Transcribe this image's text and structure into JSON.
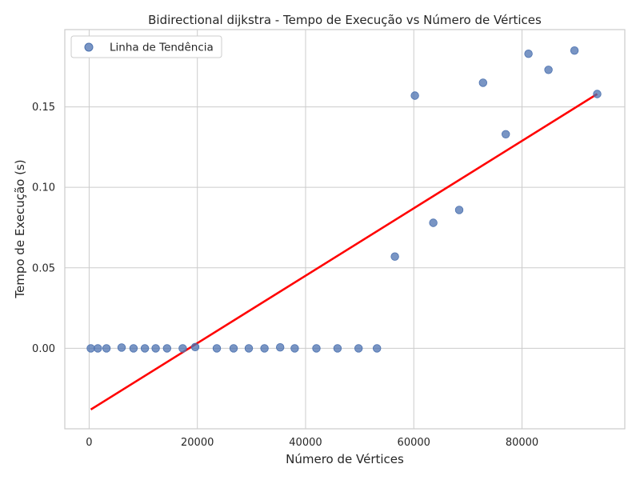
{
  "chart_data": {
    "type": "scatter",
    "title": "Bidirectional dijkstra - Tempo de Execução vs Número de Vértices",
    "xlabel": "Número de Vértices",
    "ylabel": "Tempo de Execução (s)",
    "xlim": [
      -4500,
      99000
    ],
    "ylim": [
      -0.05,
      0.198
    ],
    "xticks": [
      0,
      20000,
      40000,
      60000,
      80000
    ],
    "xtick_labels": [
      "0",
      "20000",
      "40000",
      "60000",
      "80000"
    ],
    "yticks": [
      0.0,
      0.05,
      0.1,
      0.15
    ],
    "ytick_labels": [
      "0.00",
      "0.05",
      "0.10",
      "0.15"
    ],
    "grid": true,
    "legend": {
      "position": "top-left",
      "entries": [
        "Linha de Tendência"
      ]
    },
    "series": [
      {
        "name": "Linha de Tendência",
        "kind": "scatter",
        "color": "#4c72b0",
        "points": [
          [
            300,
            0.0
          ],
          [
            1600,
            0.0
          ],
          [
            3200,
            0.0
          ],
          [
            6000,
            0.0005
          ],
          [
            8200,
            0.0
          ],
          [
            10300,
            0.0
          ],
          [
            12300,
            0.0
          ],
          [
            14400,
            0.0
          ],
          [
            17300,
            0.0
          ],
          [
            19600,
            0.0008
          ],
          [
            23600,
            0.0
          ],
          [
            26700,
            0.0
          ],
          [
            29500,
            0.0
          ],
          [
            32400,
            0.0
          ],
          [
            35300,
            0.0006
          ],
          [
            38000,
            0.0
          ],
          [
            42000,
            0.0
          ],
          [
            45900,
            0.0
          ],
          [
            49800,
            0.0
          ],
          [
            53200,
            0.0
          ],
          [
            56500,
            0.057
          ],
          [
            60200,
            0.157
          ],
          [
            63600,
            0.078
          ],
          [
            68400,
            0.086
          ],
          [
            72800,
            0.165
          ],
          [
            77000,
            0.133
          ],
          [
            81200,
            0.183
          ],
          [
            84900,
            0.173
          ],
          [
            89700,
            0.185
          ],
          [
            93900,
            0.158
          ]
        ]
      },
      {
        "kind": "line",
        "color": "#ff0000",
        "points": [
          [
            300,
            -0.038
          ],
          [
            93900,
            0.158
          ]
        ]
      }
    ]
  }
}
